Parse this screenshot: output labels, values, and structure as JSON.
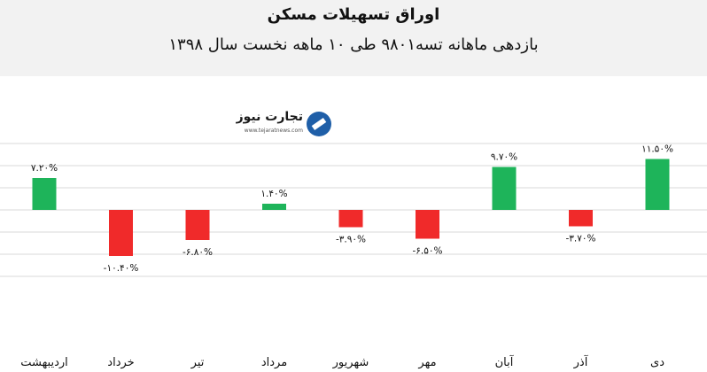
{
  "header": {
    "title": "اوراق تسهیلات مسکن",
    "subtitle": "بازدهی ماهانه تسه۹۸۰۱ طی ۱۰ ماهه نخست سال ۱۳۹۸"
  },
  "logo": {
    "name": "تجارت نیوز",
    "url": "www.tejaratnews.com"
  },
  "colors": {
    "positive": "#1eb45a",
    "negative": "#f02a2a",
    "grid": "#d9d9d9",
    "header_bg": "#f2f2f2"
  },
  "chart_data": {
    "type": "bar",
    "title": "اوراق تسهیلات مسکن",
    "subtitle": "بازدهی ماهانه تسه۹۸۰۱ طی ۱۰ ماهه نخست سال ۱۳۹۸",
    "categories": [
      "اردیبهشت",
      "خرداد",
      "تیر",
      "مرداد",
      "شهریور",
      "مهر",
      "آبان",
      "آذر",
      "دی"
    ],
    "values": [
      7.2,
      -10.4,
      -6.8,
      1.4,
      -3.9,
      -6.5,
      9.7,
      -3.7,
      11.5
    ],
    "data_labels": [
      "۷.۲۰%",
      "-۱۰.۴۰%",
      "-۶.۸۰%",
      "۱.۴۰%",
      "-۳.۹۰%",
      "-۶.۵۰%",
      "۹.۷۰%",
      "-۳.۷۰%",
      "۱۱.۵۰%"
    ],
    "ylim": [
      -15,
      15
    ],
    "grid": true,
    "legend": "none"
  }
}
